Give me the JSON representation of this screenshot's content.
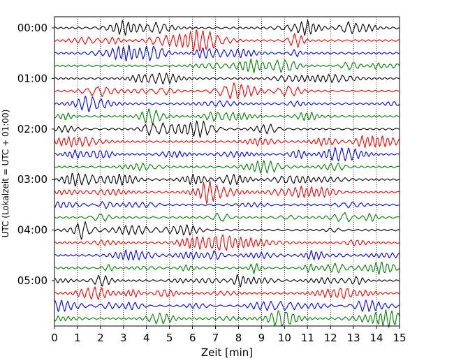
{
  "chart_data": {
    "type": "line",
    "subtype": "seismogram-helicorder",
    "xlabel": "Zeit  [min]",
    "ylabel": "UTC (Lokalzeit = UTC + 01:00)",
    "xlim": [
      0,
      15
    ],
    "x_ticks": [
      0,
      1,
      2,
      3,
      4,
      5,
      6,
      7,
      8,
      9,
      10,
      11,
      12,
      13,
      14,
      15
    ],
    "x_tick_labels": [
      "0",
      "1",
      "2",
      "3",
      "4",
      "5",
      "6",
      "7",
      "8",
      "9",
      "10",
      "11",
      "12",
      "13",
      "14",
      "15"
    ],
    "y_tick_labels": [
      "00:00",
      "01:00",
      "02:00",
      "03:00",
      "04:00",
      "05:00"
    ],
    "y_tick_rows": [
      0,
      4,
      8,
      12,
      16,
      20
    ],
    "trace_count": 24,
    "trace_interval_min": 15,
    "trace_colors": [
      "#000000",
      "#ff0000",
      "#0000ff",
      "#008000"
    ],
    "grid": "vertical dotted at each minute",
    "legend": "none"
  }
}
